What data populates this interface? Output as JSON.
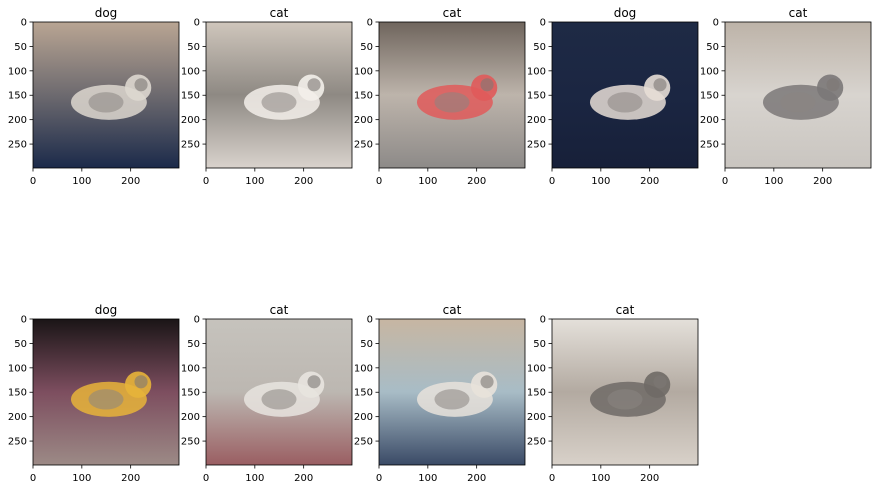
{
  "figure": {
    "panels": [
      {
        "title": "dog",
        "image": "kitten-sitting-on-open-book-on-bed",
        "palette": {
          "top": "#b9a593",
          "mid": "#6d6a6f",
          "bottom": "#1b2a4a",
          "accent": "#ddd7cf"
        }
      },
      {
        "title": "cat",
        "image": "kitten-lying-on-sofa-armrest",
        "palette": {
          "top": "#cfc6bc",
          "mid": "#8e8983",
          "bottom": "#d9d2cc",
          "accent": "#f3efea"
        }
      },
      {
        "title": "cat",
        "image": "kitten-sleeping-on-colorful-cushion",
        "palette": {
          "top": "#6f655d",
          "mid": "#bdb4ab",
          "bottom": "#8d8a88",
          "accent": "#e05a5a"
        }
      },
      {
        "title": "dog",
        "image": "kitten-lying-on-dark-blue-blanket",
        "palette": {
          "top": "#1e2a45",
          "mid": "#1b2642",
          "bottom": "#172039",
          "accent": "#e7ded6"
        }
      },
      {
        "title": "cat",
        "image": "kitten-sleeping-on-white-sofa",
        "palette": {
          "top": "#bdb3a8",
          "mid": "#d8d4cf",
          "bottom": "#c9c5c0",
          "accent": "#7b7878"
        }
      },
      {
        "title": "dog",
        "image": "kitten-on-patchwork-blanket-dark-room",
        "palette": {
          "top": "#1a1516",
          "mid": "#7d4e5f",
          "bottom": "#9c8a86",
          "accent": "#e7b43a"
        }
      },
      {
        "title": "cat",
        "image": "kitten-under-pink-blanket-on-sofa",
        "palette": {
          "top": "#c6c3bd",
          "mid": "#bcb7b1",
          "bottom": "#9a5e62",
          "accent": "#e8e4df"
        }
      },
      {
        "title": "cat",
        "image": "kitten-on-map-pattern-blanket",
        "palette": {
          "top": "#c7b6a2",
          "mid": "#a8bcc6",
          "bottom": "#3a4a66",
          "accent": "#e8e2da"
        }
      },
      {
        "title": "cat",
        "image": "kitten-lying-on-beige-sofa",
        "palette": {
          "top": "#e4e0da",
          "mid": "#b3aaa1",
          "bottom": "#d8d1c9",
          "accent": "#6f6a66"
        }
      }
    ],
    "axes": {
      "xlim": [
        0,
        299
      ],
      "ylim": [
        299,
        0
      ],
      "x_ticks": [
        0,
        100,
        200
      ],
      "y_ticks": [
        0,
        50,
        100,
        150,
        200,
        250
      ]
    }
  }
}
